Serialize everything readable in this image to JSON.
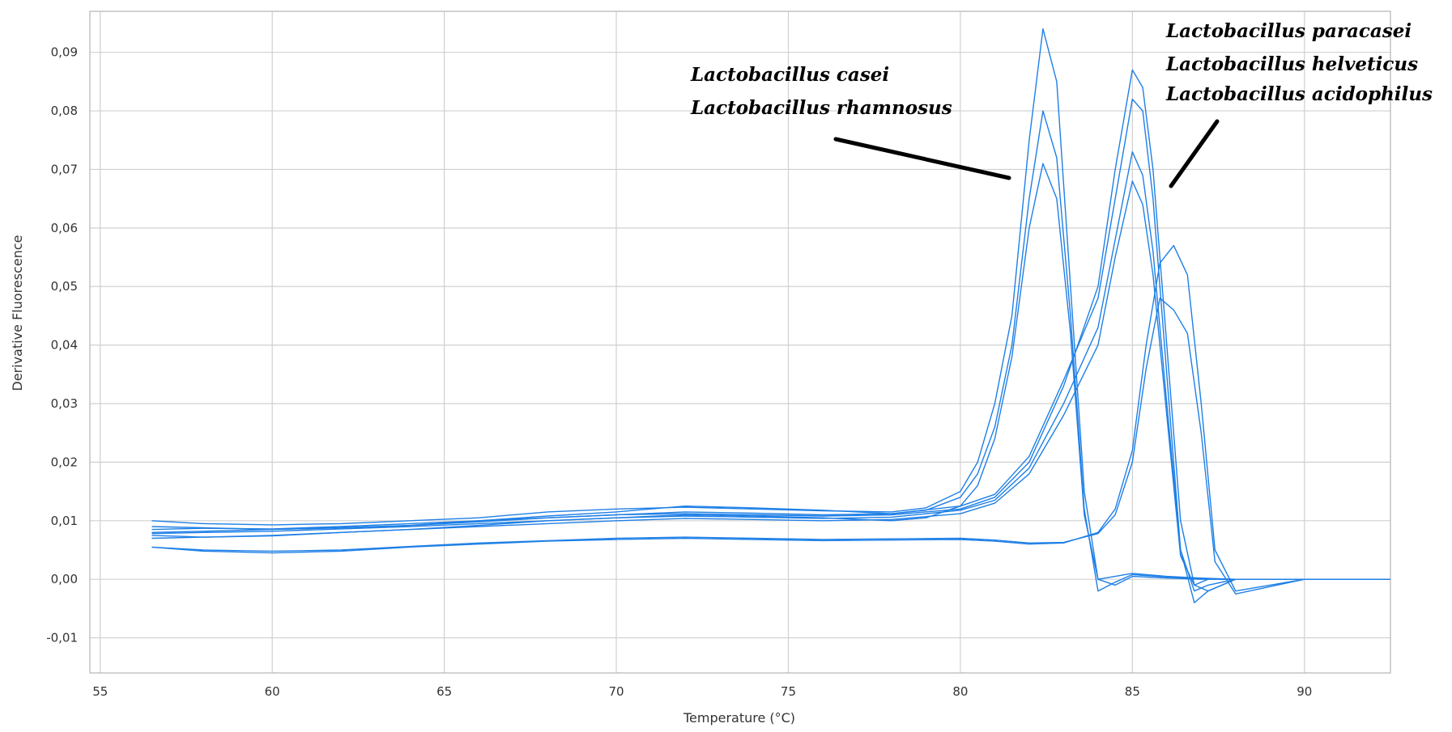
{
  "chart_data": {
    "type": "line",
    "title": "",
    "xlabel": "Temperature (°C)",
    "ylabel": "Derivative Fluorescence",
    "xlim": [
      54.7,
      92.5
    ],
    "ylim": [
      -0.016,
      0.097
    ],
    "xticks": [
      55,
      60,
      65,
      70,
      75,
      80,
      85,
      90
    ],
    "xtick_labels": [
      "55",
      "60",
      "65",
      "70",
      "75",
      "80",
      "85",
      "90"
    ],
    "yticks": [
      -0.01,
      0.0,
      0.01,
      0.02,
      0.03,
      0.04,
      0.05,
      0.06,
      0.07,
      0.08,
      0.09
    ],
    "ytick_labels": [
      "-0,01",
      "0,00",
      "0,01",
      "0,02",
      "0,03",
      "0,04",
      "0,05",
      "0,06",
      "0,07",
      "0,08",
      "0,09"
    ],
    "grid": true,
    "line_color": "#1e7fe6",
    "annotations": [
      {
        "lines": [
          "Lactobacillus casei",
          "Lactobacillus rhamnosus"
        ]
      },
      {
        "lines": [
          "Lactobacillus paracasei",
          "Lactobacillus helveticus",
          "Lactobacillus acidophilus"
        ]
      }
    ],
    "series": [
      {
        "x": [
          56.5,
          58,
          60,
          62,
          64,
          66,
          68,
          70,
          72,
          74,
          76,
          78,
          79,
          80,
          80.5,
          81,
          81.5,
          82,
          82.4,
          82.8,
          83.2,
          83.6,
          84,
          84.5,
          85,
          86,
          87,
          88,
          90,
          92.5
        ],
        "y": [
          0.01,
          0.0095,
          0.0093,
          0.0095,
          0.01,
          0.0105,
          0.0115,
          0.012,
          0.0123,
          0.012,
          0.0117,
          0.0115,
          0.0122,
          0.015,
          0.02,
          0.03,
          0.045,
          0.075,
          0.094,
          0.085,
          0.05,
          0.015,
          0.0,
          -0.001,
          0.0005,
          0.0002,
          0.0,
          0.0,
          0.0,
          0.0
        ]
      },
      {
        "x": [
          56.5,
          58,
          60,
          62,
          64,
          66,
          68,
          70,
          72,
          74,
          76,
          78,
          79,
          80,
          80.5,
          81,
          81.5,
          82,
          82.4,
          82.8,
          83.2,
          83.6,
          84,
          84.5,
          85,
          86,
          87,
          88,
          90,
          92.5
        ],
        "y": [
          0.008,
          0.0082,
          0.0085,
          0.0088,
          0.0092,
          0.01,
          0.0108,
          0.0115,
          0.0125,
          0.0122,
          0.0118,
          0.0112,
          0.0118,
          0.014,
          0.018,
          0.026,
          0.04,
          0.065,
          0.08,
          0.072,
          0.045,
          0.012,
          -0.002,
          -0.0005,
          0.0008,
          0.0004,
          0.0001,
          0.0,
          0.0,
          0.0
        ]
      },
      {
        "x": [
          56.5,
          58,
          60,
          62,
          64,
          66,
          68,
          70,
          72,
          74,
          76,
          78,
          79,
          80,
          80.5,
          81,
          81.5,
          82,
          82.4,
          82.8,
          83.2,
          83.6,
          84,
          84.5,
          85,
          86,
          87,
          88,
          90,
          92.5
        ],
        "y": [
          0.0075,
          0.0072,
          0.0074,
          0.008,
          0.0085,
          0.0092,
          0.01,
          0.0105,
          0.011,
          0.0108,
          0.0105,
          0.01,
          0.0105,
          0.0125,
          0.016,
          0.024,
          0.038,
          0.06,
          0.071,
          0.065,
          0.042,
          0.011,
          0.0,
          0.0005,
          0.001,
          0.0005,
          0.0002,
          0.0,
          0.0,
          0.0
        ]
      },
      {
        "x": [
          56.5,
          58,
          60,
          62,
          64,
          66,
          68,
          70,
          72,
          74,
          76,
          78,
          80,
          81,
          82,
          83,
          84,
          84.5,
          85,
          85.3,
          85.6,
          86,
          86.4,
          86.8,
          87.2,
          88,
          90,
          92.5
        ],
        "y": [
          0.009,
          0.0088,
          0.0085,
          0.0088,
          0.0092,
          0.0098,
          0.0105,
          0.011,
          0.0112,
          0.011,
          0.0108,
          0.011,
          0.012,
          0.014,
          0.02,
          0.033,
          0.05,
          0.07,
          0.087,
          0.084,
          0.07,
          0.04,
          0.01,
          -0.001,
          -0.002,
          0.0,
          0.0,
          0.0
        ]
      },
      {
        "x": [
          56.5,
          58,
          60,
          62,
          64,
          66,
          68,
          70,
          72,
          74,
          76,
          78,
          80,
          81,
          82,
          83,
          84,
          84.5,
          85,
          85.3,
          85.6,
          86,
          86.4,
          86.8,
          87.2,
          88,
          90,
          92.5
        ],
        "y": [
          0.0085,
          0.0087,
          0.0086,
          0.009,
          0.0095,
          0.01,
          0.0105,
          0.011,
          0.0115,
          0.0113,
          0.011,
          0.0112,
          0.0125,
          0.0145,
          0.021,
          0.034,
          0.048,
          0.065,
          0.082,
          0.08,
          0.065,
          0.035,
          0.005,
          -0.004,
          -0.002,
          0.0,
          0.0,
          0.0
        ]
      },
      {
        "x": [
          56.5,
          58,
          60,
          62,
          64,
          66,
          68,
          70,
          72,
          74,
          76,
          78,
          80,
          81,
          82,
          83,
          84,
          84.5,
          85,
          85.3,
          85.6,
          86,
          86.4,
          86.8,
          87.2,
          88,
          90,
          92.5
        ],
        "y": [
          0.0078,
          0.008,
          0.0082,
          0.0086,
          0.009,
          0.0095,
          0.01,
          0.0105,
          0.0108,
          0.0106,
          0.0104,
          0.0106,
          0.0118,
          0.0135,
          0.019,
          0.03,
          0.043,
          0.058,
          0.073,
          0.069,
          0.056,
          0.03,
          0.005,
          -0.002,
          -0.001,
          0.0,
          0.0,
          0.0
        ]
      },
      {
        "x": [
          56.5,
          58,
          60,
          62,
          64,
          66,
          68,
          70,
          72,
          74,
          76,
          78,
          80,
          81,
          82,
          83,
          84,
          84.5,
          85,
          85.3,
          85.6,
          86,
          86.4,
          86.8,
          87.2,
          88,
          90,
          92.5
        ],
        "y": [
          0.007,
          0.0072,
          0.0075,
          0.008,
          0.0085,
          0.009,
          0.0095,
          0.01,
          0.0104,
          0.0102,
          0.01,
          0.0102,
          0.0112,
          0.013,
          0.018,
          0.028,
          0.04,
          0.055,
          0.068,
          0.064,
          0.052,
          0.028,
          0.004,
          -0.001,
          0.0,
          0.0,
          0.0,
          0.0
        ]
      },
      {
        "x": [
          56.5,
          58,
          60,
          62,
          64,
          66,
          68,
          70,
          72,
          74,
          76,
          78,
          80,
          81,
          82,
          83,
          84,
          84.5,
          85,
          85.4,
          85.8,
          86.2,
          86.6,
          87,
          87.4,
          88,
          90,
          92.5
        ],
        "y": [
          0.0055,
          0.0048,
          0.0045,
          0.0048,
          0.0055,
          0.006,
          0.0065,
          0.0068,
          0.007,
          0.0068,
          0.0066,
          0.0067,
          0.0068,
          0.0065,
          0.006,
          0.0062,
          0.008,
          0.012,
          0.022,
          0.04,
          0.054,
          0.057,
          0.052,
          0.03,
          0.005,
          -0.002,
          0.0,
          0.0
        ]
      },
      {
        "x": [
          56.5,
          58,
          60,
          62,
          64,
          66,
          68,
          70,
          72,
          74,
          76,
          78,
          80,
          81,
          82,
          83,
          84,
          84.5,
          85,
          85.4,
          85.8,
          86.2,
          86.6,
          87,
          87.4,
          88,
          90,
          92.5
        ],
        "y": [
          0.0055,
          0.005,
          0.0048,
          0.005,
          0.0056,
          0.0062,
          0.0066,
          0.007,
          0.0072,
          0.007,
          0.0068,
          0.0069,
          0.007,
          0.0067,
          0.0062,
          0.0063,
          0.0078,
          0.011,
          0.02,
          0.036,
          0.048,
          0.046,
          0.042,
          0.025,
          0.003,
          -0.0025,
          0.0,
          0.0
        ]
      }
    ]
  }
}
